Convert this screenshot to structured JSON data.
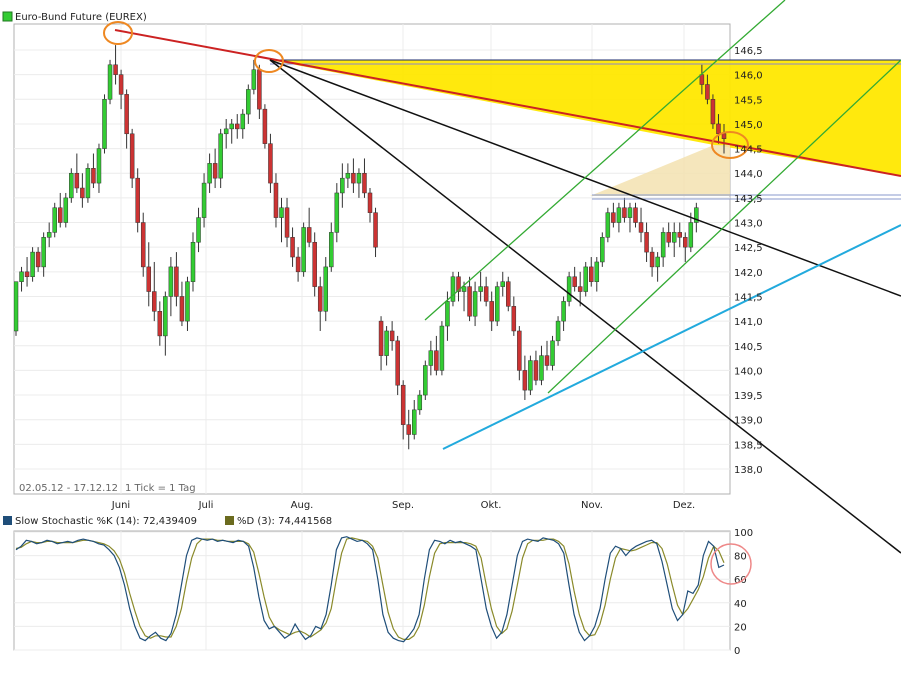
{
  "chart_data": [
    {
      "type": "candlestick",
      "title": "Euro-Bund Future (EUREX)",
      "legend_color": "#33cc33",
      "date_range": "02.05.12 - 17.12.12",
      "tick_note": "1 Tick = 1 Tag",
      "ylim": [
        137.5,
        147.0
      ],
      "y_ticks": [
        "146,5",
        "146,0",
        "145,5",
        "145,0",
        "144,5",
        "144,0",
        "143,5",
        "143,0",
        "142,5",
        "142,0",
        "141,5",
        "141,0",
        "140,5",
        "140,0",
        "139,5",
        "139,0",
        "138,5",
        "138,0"
      ],
      "x_ticks": [
        "Juni",
        "Juli",
        "Aug.",
        "Sep.",
        "Okt.",
        "Nov.",
        "Dez."
      ],
      "up_color": "#33cc33",
      "down_color": "#cc3333",
      "candles": [
        [
          140.8,
          141.8,
          140.7,
          141.8
        ],
        [
          141.8,
          142.1,
          141.6,
          142.0
        ],
        [
          142.0,
          142.3,
          141.7,
          141.9
        ],
        [
          141.9,
          142.5,
          141.8,
          142.4
        ],
        [
          142.4,
          142.5,
          142.0,
          142.1
        ],
        [
          142.1,
          142.8,
          141.9,
          142.7
        ],
        [
          142.7,
          143.0,
          142.5,
          142.8
        ],
        [
          142.8,
          143.4,
          142.7,
          143.3
        ],
        [
          143.3,
          143.6,
          142.9,
          143.0
        ],
        [
          143.0,
          143.6,
          142.9,
          143.5
        ],
        [
          143.5,
          144.1,
          143.4,
          144.0
        ],
        [
          144.0,
          144.4,
          143.6,
          143.7
        ],
        [
          143.7,
          144.0,
          143.3,
          143.5
        ],
        [
          143.5,
          144.2,
          143.4,
          144.1
        ],
        [
          144.1,
          144.4,
          143.7,
          143.8
        ],
        [
          143.8,
          144.6,
          143.6,
          144.5
        ],
        [
          144.5,
          145.6,
          144.4,
          145.5
        ],
        [
          145.5,
          146.3,
          145.4,
          146.2
        ],
        [
          146.2,
          146.6,
          145.8,
          146.0
        ],
        [
          146.0,
          146.1,
          145.3,
          145.6
        ],
        [
          145.6,
          145.7,
          144.5,
          144.8
        ],
        [
          144.8,
          144.9,
          143.7,
          143.9
        ],
        [
          143.9,
          144.1,
          142.8,
          143.0
        ],
        [
          143.0,
          143.2,
          141.9,
          142.1
        ],
        [
          142.1,
          142.6,
          141.3,
          141.6
        ],
        [
          141.6,
          142.2,
          141.0,
          141.2
        ],
        [
          141.2,
          141.4,
          140.5,
          140.7
        ],
        [
          140.7,
          141.6,
          140.3,
          141.5
        ],
        [
          141.5,
          142.3,
          141.1,
          142.1
        ],
        [
          142.1,
          142.4,
          141.3,
          141.5
        ],
        [
          141.5,
          141.8,
          140.9,
          141.0
        ],
        [
          141.0,
          141.9,
          140.8,
          141.8
        ],
        [
          141.8,
          142.8,
          141.6,
          142.6
        ],
        [
          142.6,
          143.3,
          142.4,
          143.1
        ],
        [
          143.1,
          144.0,
          142.9,
          143.8
        ],
        [
          143.8,
          144.4,
          143.6,
          144.2
        ],
        [
          144.2,
          144.5,
          143.7,
          143.9
        ],
        [
          143.9,
          144.9,
          143.7,
          144.8
        ],
        [
          144.8,
          145.1,
          144.5,
          144.9
        ],
        [
          144.9,
          145.1,
          144.6,
          145.0
        ],
        [
          145.0,
          145.2,
          144.7,
          144.9
        ],
        [
          144.9,
          145.3,
          144.7,
          145.2
        ],
        [
          145.2,
          145.8,
          145.0,
          145.7
        ],
        [
          145.7,
          146.3,
          145.6,
          146.1
        ],
        [
          146.1,
          146.2,
          145.1,
          145.3
        ],
        [
          145.3,
          145.4,
          144.5,
          144.6
        ],
        [
          144.6,
          144.8,
          143.6,
          143.8
        ],
        [
          143.8,
          144.0,
          142.9,
          143.1
        ],
        [
          143.1,
          143.5,
          142.6,
          143.3
        ],
        [
          143.3,
          143.5,
          142.5,
          142.7
        ],
        [
          142.7,
          142.9,
          142.1,
          142.3
        ],
        [
          142.3,
          142.5,
          141.8,
          142.0
        ],
        [
          142.0,
          143.0,
          141.9,
          142.9
        ],
        [
          142.9,
          143.3,
          142.5,
          142.6
        ],
        [
          142.6,
          142.8,
          141.5,
          141.7
        ],
        [
          141.7,
          141.9,
          140.8,
          141.2
        ],
        [
          141.2,
          142.3,
          141.0,
          142.1
        ],
        [
          142.1,
          143.0,
          142.0,
          142.8
        ],
        [
          142.8,
          143.8,
          142.6,
          143.6
        ],
        [
          143.6,
          144.2,
          143.3,
          143.9
        ],
        [
          143.9,
          144.2,
          143.7,
          144.0
        ],
        [
          144.0,
          144.3,
          143.6,
          143.8
        ],
        [
          143.8,
          144.1,
          143.5,
          144.0
        ],
        [
          144.0,
          144.3,
          143.5,
          143.6
        ],
        [
          143.6,
          143.7,
          143.0,
          143.2
        ],
        [
          143.2,
          143.3,
          142.3,
          142.5
        ],
        [
          141.0,
          141.1,
          140.0,
          140.3
        ],
        [
          140.3,
          140.9,
          140.1,
          140.8
        ],
        [
          140.8,
          141.0,
          140.4,
          140.6
        ],
        [
          140.6,
          140.7,
          139.5,
          139.7
        ],
        [
          139.7,
          139.8,
          138.6,
          138.9
        ],
        [
          138.9,
          139.2,
          138.4,
          138.7
        ],
        [
          138.7,
          139.4,
          138.6,
          139.2
        ],
        [
          139.2,
          139.6,
          139.1,
          139.5
        ],
        [
          139.5,
          140.2,
          139.4,
          140.1
        ],
        [
          140.1,
          140.6,
          139.9,
          140.4
        ],
        [
          140.4,
          140.7,
          139.9,
          140.0
        ],
        [
          140.0,
          141.0,
          139.9,
          140.9
        ],
        [
          140.9,
          141.6,
          140.6,
          141.4
        ],
        [
          141.4,
          142.0,
          141.3,
          141.9
        ],
        [
          141.9,
          142.0,
          141.4,
          141.6
        ],
        [
          141.6,
          141.8,
          141.2,
          141.7
        ],
        [
          141.7,
          141.9,
          141.0,
          141.1
        ],
        [
          141.1,
          141.8,
          140.9,
          141.6
        ],
        [
          141.6,
          142.0,
          141.4,
          141.7
        ],
        [
          141.7,
          141.9,
          141.3,
          141.4
        ],
        [
          141.4,
          141.6,
          140.8,
          141.0
        ],
        [
          141.0,
          141.8,
          140.9,
          141.7
        ],
        [
          141.7,
          142.0,
          141.5,
          141.8
        ],
        [
          141.8,
          141.9,
          141.2,
          141.3
        ],
        [
          141.3,
          141.5,
          140.7,
          140.8
        ],
        [
          140.8,
          140.9,
          139.8,
          140.0
        ],
        [
          140.0,
          140.3,
          139.4,
          139.6
        ],
        [
          139.6,
          140.3,
          139.5,
          140.2
        ],
        [
          140.2,
          140.4,
          139.7,
          139.8
        ],
        [
          139.8,
          140.5,
          139.7,
          140.3
        ],
        [
          140.3,
          140.6,
          140.0,
          140.1
        ],
        [
          140.1,
          140.7,
          140.0,
          140.6
        ],
        [
          140.6,
          141.1,
          140.5,
          141.0
        ],
        [
          141.0,
          141.5,
          140.8,
          141.4
        ],
        [
          141.4,
          142.0,
          141.3,
          141.9
        ],
        [
          141.9,
          142.1,
          141.6,
          141.7
        ],
        [
          141.7,
          142.0,
          141.3,
          141.6
        ],
        [
          141.6,
          142.2,
          141.5,
          142.1
        ],
        [
          142.1,
          142.3,
          141.7,
          141.8
        ],
        [
          141.8,
          142.3,
          141.6,
          142.2
        ],
        [
          142.2,
          142.8,
          142.1,
          142.7
        ],
        [
          142.7,
          143.3,
          142.6,
          143.2
        ],
        [
          143.2,
          143.4,
          142.9,
          143.0
        ],
        [
          143.0,
          143.4,
          142.8,
          143.3
        ],
        [
          143.3,
          143.5,
          143.0,
          143.1
        ],
        [
          143.1,
          143.4,
          142.8,
          143.3
        ],
        [
          143.3,
          143.4,
          142.9,
          143.0
        ],
        [
          143.0,
          143.3,
          142.6,
          142.8
        ],
        [
          142.8,
          143.0,
          142.2,
          142.4
        ],
        [
          142.4,
          142.5,
          141.9,
          142.1
        ],
        [
          142.1,
          142.4,
          141.8,
          142.3
        ],
        [
          142.3,
          142.9,
          142.1,
          142.8
        ],
        [
          142.8,
          143.0,
          142.5,
          142.6
        ],
        [
          142.6,
          143.0,
          142.3,
          142.8
        ],
        [
          142.8,
          143.0,
          142.5,
          142.7
        ],
        [
          142.7,
          142.8,
          142.2,
          142.5
        ],
        [
          142.5,
          143.2,
          142.4,
          143.0
        ],
        [
          143.0,
          143.4,
          142.8,
          143.3
        ],
        [
          146.0,
          146.2,
          145.6,
          145.8
        ],
        [
          145.8,
          146.0,
          145.4,
          145.5
        ],
        [
          145.5,
          145.6,
          144.9,
          145.0
        ],
        [
          145.0,
          145.2,
          144.6,
          144.8
        ],
        [
          144.8,
          145.0,
          144.4,
          144.7
        ]
      ]
    },
    {
      "type": "line",
      "title": "",
      "series": [
        {
          "name": "Slow Stochastic %K (14): 72,439409",
          "color": "#1f4e79"
        },
        {
          "name": "%D (3): 74,441568",
          "color": "#6b6b1f"
        }
      ],
      "ylim": [
        0,
        100
      ],
      "y_ticks": [
        "100",
        "80",
        "60",
        "40",
        "20",
        "0"
      ],
      "k_values": [
        85,
        88,
        93,
        92,
        90,
        91,
        93,
        92,
        90,
        91,
        92,
        91,
        93,
        94,
        93,
        92,
        90,
        89,
        85,
        80,
        70,
        55,
        35,
        20,
        10,
        8,
        12,
        15,
        10,
        8,
        14,
        30,
        55,
        80,
        93,
        95,
        94,
        93,
        94,
        92,
        93,
        92,
        91,
        93,
        92,
        88,
        70,
        45,
        25,
        18,
        20,
        15,
        10,
        13,
        22,
        15,
        9,
        12,
        20,
        18,
        30,
        55,
        85,
        95,
        96,
        94,
        92,
        93,
        90,
        85,
        60,
        30,
        15,
        10,
        8,
        7,
        12,
        18,
        30,
        60,
        85,
        93,
        92,
        90,
        93,
        91,
        92,
        90,
        88,
        85,
        60,
        35,
        20,
        10,
        15,
        30,
        55,
        80,
        92,
        94,
        93,
        92,
        95,
        94,
        93,
        90,
        82,
        55,
        30,
        15,
        8,
        12,
        20,
        35,
        60,
        82,
        88,
        86,
        80,
        85,
        88,
        90,
        92,
        93,
        90,
        75,
        55,
        35,
        25,
        30,
        50,
        48,
        55,
        80,
        92,
        88,
        70,
        72
      ],
      "d_values": [
        86,
        87,
        90,
        92,
        91,
        91,
        92,
        92,
        91,
        91,
        91,
        91,
        92,
        93,
        93,
        92,
        91,
        90,
        88,
        84,
        77,
        65,
        48,
        33,
        20,
        12,
        10,
        12,
        12,
        11,
        11,
        20,
        35,
        58,
        78,
        90,
        94,
        94,
        94,
        93,
        93,
        92,
        92,
        92,
        92,
        90,
        83,
        65,
        45,
        28,
        20,
        17,
        15,
        13,
        15,
        16,
        14,
        11,
        14,
        17,
        23,
        35,
        60,
        82,
        94,
        95,
        94,
        93,
        92,
        88,
        78,
        55,
        32,
        18,
        11,
        9,
        9,
        12,
        20,
        38,
        62,
        82,
        90,
        91,
        91,
        91,
        91,
        91,
        90,
        88,
        78,
        55,
        35,
        20,
        14,
        18,
        33,
        55,
        78,
        90,
        93,
        93,
        93,
        94,
        94,
        92,
        88,
        73,
        50,
        30,
        17,
        12,
        13,
        22,
        38,
        60,
        78,
        86,
        85,
        84,
        85,
        87,
        89,
        91,
        91,
        86,
        73,
        55,
        38,
        30,
        35,
        43,
        51,
        62,
        78,
        88,
        84,
        74
      ]
    }
  ]
}
